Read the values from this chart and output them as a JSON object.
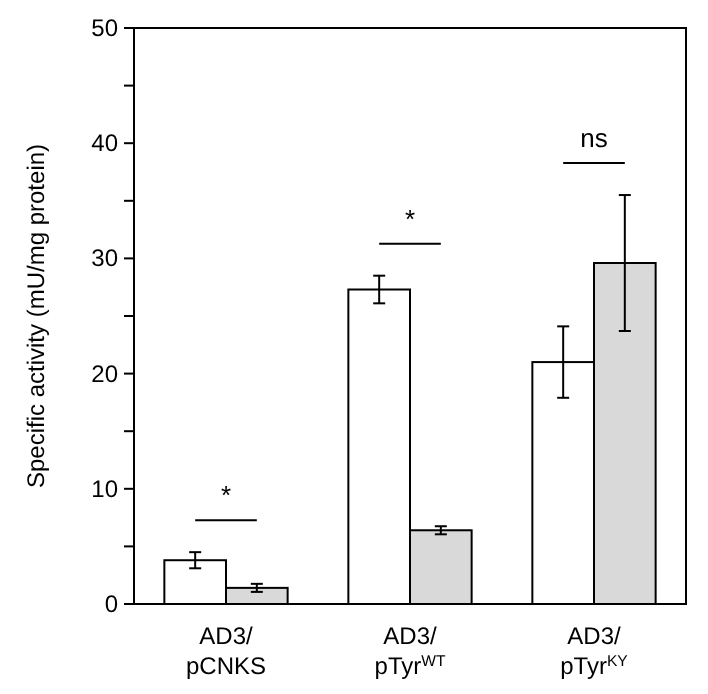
{
  "chart_data": {
    "type": "bar",
    "ylabel": "Specific activity (mU/mg protein)",
    "categories": [
      "AD3/\npCNKS",
      "AD3/\npTyr$^{WT}$",
      "AD3/\npTyr$^{KY}$"
    ],
    "series": [
      {
        "color": "#ffffff",
        "values": [
          3.8,
          27.3,
          21.0
        ],
        "errors": [
          0.7,
          1.2,
          3.1
        ]
      },
      {
        "color": "#d9d9d9",
        "values": [
          1.4,
          6.4,
          29.6
        ],
        "errors": [
          0.35,
          0.35,
          5.9
        ]
      }
    ],
    "ylim": [
      0,
      50
    ],
    "yticks": [
      0,
      {
        "value": 5,
        "label": null
      },
      10,
      {
        "value": 15,
        "label": null
      },
      20,
      {
        "value": 25,
        "label": null
      },
      30,
      {
        "value": 35,
        "label": null
      },
      40,
      {
        "value": 45,
        "label": null
      },
      50
    ],
    "annotations": [
      "*",
      "*",
      "ns"
    ],
    "grid": false
  }
}
